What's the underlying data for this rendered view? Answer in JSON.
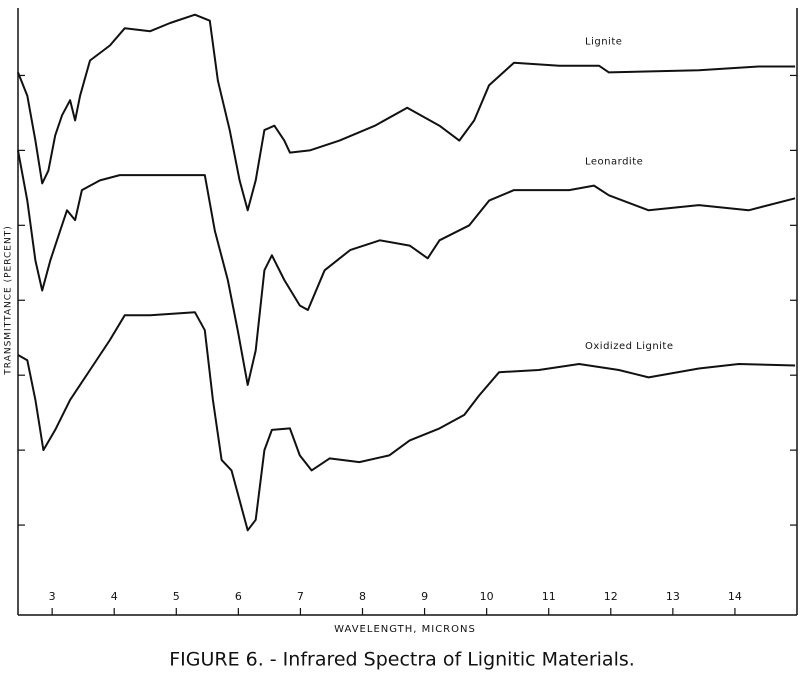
{
  "chart_data": {
    "type": "line",
    "title": "FIGURE 6. - Infrared Spectra of Lignitic Materials.",
    "x_label": "WAVELENGTH, MICRONS",
    "y_label": "TRANSMITTANCE (PERCENT)",
    "xlim": [
      2.45,
      15
    ],
    "xticks": [
      3,
      4,
      5,
      6,
      7,
      8,
      9,
      10,
      11,
      12,
      13,
      14
    ],
    "ylim": [
      0,
      81
    ],
    "yticks": [
      12,
      22,
      32,
      42,
      52,
      62,
      72
    ],
    "series": [
      {
        "name": "Lignite",
        "color": "#111111",
        "x": [
          2.45,
          2.6,
          2.73,
          2.84,
          2.94,
          3.05,
          3.16,
          3.29,
          3.37,
          3.45,
          3.61,
          3.93,
          4.17,
          4.58,
          4.9,
          5.3,
          5.54,
          5.67,
          5.86,
          6.02,
          6.15,
          6.28,
          6.42,
          6.58,
          6.74,
          6.83,
          7.15,
          7.63,
          8.2,
          8.72,
          9.24,
          9.56,
          9.8,
          10.04,
          10.44,
          11.17,
          11.81,
          11.97,
          13.42,
          14.38,
          14.97
        ],
        "values": [
          72.4,
          69.3,
          63.3,
          57.6,
          59.3,
          64,
          66.7,
          68.7,
          66,
          69.3,
          74,
          76,
          78.3,
          77.9,
          79,
          80.1,
          79.3,
          71.3,
          64.7,
          58,
          54,
          58,
          64.7,
          65.3,
          63.3,
          61.7,
          62,
          63.3,
          65.3,
          67.7,
          65.3,
          63.3,
          66,
          70.7,
          73.7,
          73.3,
          73.3,
          72.4,
          72.7,
          73.2,
          73.2
        ]
      },
      {
        "name": "Leonardite",
        "color": "#111111",
        "x": [
          2.45,
          2.6,
          2.73,
          2.84,
          2.97,
          3.13,
          3.24,
          3.37,
          3.48,
          3.77,
          4.09,
          4.58,
          5.46,
          5.62,
          5.83,
          5.99,
          6.15,
          6.28,
          6.42,
          6.54,
          6.74,
          6.99,
          7.12,
          7.39,
          7.8,
          8.28,
          8.76,
          9.05,
          9.24,
          9.72,
          10.04,
          10.44,
          11.33,
          11.73,
          11.97,
          12.61,
          13.42,
          14.22,
          14.97
        ],
        "values": [
          62,
          55.3,
          47.3,
          43.3,
          47.3,
          51.3,
          54,
          52.7,
          56.7,
          58,
          58.7,
          58.7,
          58.7,
          51.3,
          44.7,
          38,
          30.7,
          35.3,
          46,
          48,
          44.7,
          41.3,
          40.7,
          46,
          48.7,
          50,
          49.3,
          47.6,
          50,
          52,
          55.3,
          56.7,
          56.7,
          57.3,
          56,
          54,
          54.7,
          54,
          55.6
        ]
      },
      {
        "name": "Oxidized Lignite",
        "color": "#111111",
        "x": [
          2.45,
          2.6,
          2.73,
          2.86,
          3.05,
          3.29,
          3.61,
          3.93,
          4.17,
          4.58,
          5.3,
          5.46,
          5.59,
          5.73,
          5.89,
          6.02,
          6.15,
          6.28,
          6.42,
          6.54,
          6.83,
          6.99,
          7.18,
          7.47,
          7.95,
          8.43,
          8.76,
          9.24,
          9.64,
          9.88,
          10.2,
          10.84,
          11.49,
          12.13,
          12.61,
          13.42,
          14.06,
          14.97
        ],
        "values": [
          34.7,
          34,
          28.7,
          22,
          24.7,
          28.7,
          32.7,
          36.7,
          40,
          40,
          40.4,
          38,
          28.7,
          20.7,
          19.3,
          15.3,
          11.3,
          12.7,
          22,
          24.7,
          24.9,
          21.3,
          19.3,
          20.9,
          20.4,
          21.3,
          23.3,
          24.9,
          26.7,
          29.3,
          32.4,
          32.7,
          33.5,
          32.7,
          31.7,
          32.9,
          33.5,
          33.3
        ]
      }
    ]
  }
}
